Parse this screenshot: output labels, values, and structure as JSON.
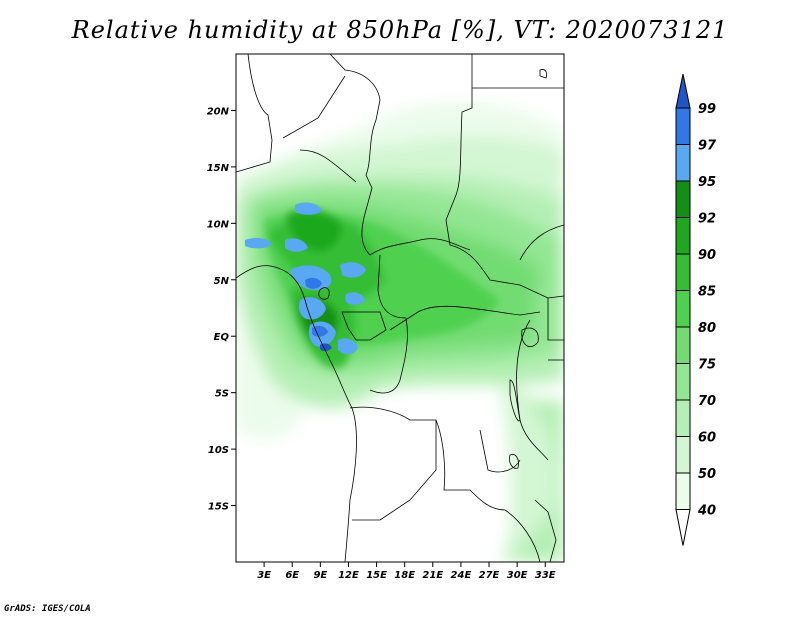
{
  "title": "Relative humidity at 850hPa [%], VT: 2020073121",
  "credit": "GrADS: IGES/COLA",
  "map": {
    "lat_range": [
      -20,
      25
    ],
    "lon_range": [
      0,
      35
    ],
    "lat_ticks": [
      "20N",
      "15N",
      "10N",
      "5N",
      "EQ",
      "5S",
      "10S",
      "15S"
    ],
    "lat_tick_values": [
      20,
      15,
      10,
      5,
      0,
      -5,
      -10,
      -15
    ],
    "lon_ticks": [
      "3E",
      "6E",
      "9E",
      "12E",
      "15E",
      "18E",
      "21E",
      "24E",
      "27E",
      "30E",
      "33E"
    ],
    "lon_tick_values": [
      3,
      6,
      9,
      12,
      15,
      18,
      21,
      24,
      27,
      30,
      33
    ]
  },
  "colorbar": {
    "levels": [
      "99",
      "97",
      "95",
      "92",
      "90",
      "85",
      "80",
      "75",
      "70",
      "60",
      "50",
      "40"
    ],
    "colors": [
      "#1f55c8",
      "#2f78e6",
      "#59a8f2",
      "#128f14",
      "#1fa81f",
      "#35be35",
      "#4fd04f",
      "#72dc72",
      "#93e693",
      "#b5efb5",
      "#d3f6d3",
      "#ecfcec"
    ]
  }
}
